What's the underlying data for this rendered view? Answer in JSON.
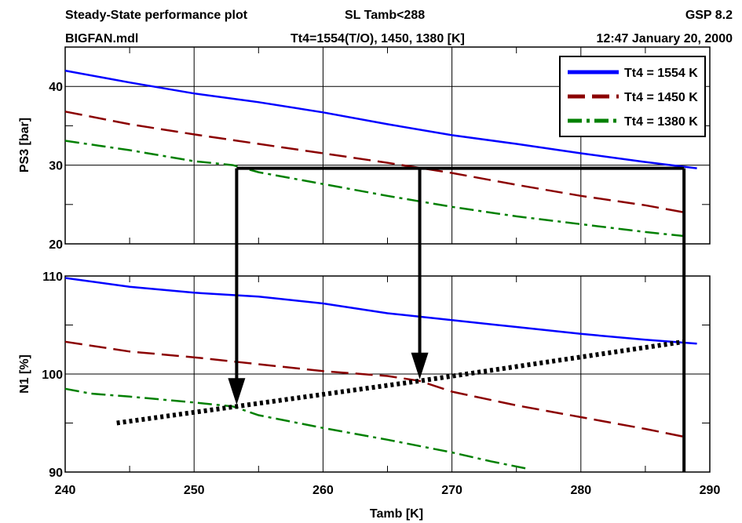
{
  "header": {
    "title": "Steady-State performance plot",
    "model": "BIGFAN.mdl",
    "condition": "SL Tamb<288",
    "tt4_list": "Tt4=1554(T/O), 1450, 1380 [K]",
    "version": "GSP 8.2",
    "datetime": "12:47  January 20, 2000"
  },
  "chart_data": [
    {
      "type": "line",
      "ylabel": "PS3 [bar]",
      "xlim": [
        240,
        290
      ],
      "ylim": [
        20,
        45
      ],
      "yticks": [
        20,
        30,
        40
      ],
      "yticks_minor": [
        25,
        35
      ],
      "grid": true,
      "legend_position": "top-right",
      "series": [
        {
          "name": "Tt4 = 1554 K",
          "color": "#0000ff",
          "style": "solid",
          "x": [
            240,
            245,
            250,
            255,
            260,
            265,
            270,
            275,
            280,
            285,
            289
          ],
          "y": [
            42.0,
            40.5,
            39.1,
            38.0,
            36.7,
            35.2,
            33.8,
            32.7,
            31.5,
            30.4,
            29.6
          ]
        },
        {
          "name": "Tt4 = 1450 K",
          "color": "#8b0000",
          "style": "dashed",
          "x": [
            240,
            245,
            250,
            255,
            260,
            265,
            270,
            275,
            280,
            285,
            288
          ],
          "y": [
            36.8,
            35.2,
            33.9,
            32.7,
            31.5,
            30.3,
            29.0,
            27.5,
            26.1,
            24.9,
            24.0
          ]
        },
        {
          "name": "Tt4 = 1380 K",
          "color": "#008000",
          "style": "dashdot",
          "x": [
            240,
            245,
            250,
            253,
            255,
            260,
            265,
            270,
            275,
            280,
            285,
            288
          ],
          "y": [
            33.1,
            31.9,
            30.5,
            30.0,
            29.1,
            27.6,
            26.1,
            24.7,
            23.5,
            22.5,
            21.5,
            21.0
          ]
        }
      ]
    },
    {
      "type": "line",
      "ylabel": "N1 [%]",
      "xlabel": "Tamb [K]",
      "xlim": [
        240,
        290
      ],
      "xticks": [
        240,
        250,
        260,
        270,
        280,
        290
      ],
      "ylim": [
        90,
        110
      ],
      "yticks": [
        90,
        100,
        110
      ],
      "yticks_minor": [
        95,
        105
      ],
      "grid": true,
      "series": [
        {
          "name": "Tt4 = 1554 K",
          "color": "#0000ff",
          "style": "solid",
          "x": [
            240,
            245,
            250,
            255,
            260,
            265,
            270,
            275,
            280,
            285,
            289
          ],
          "y": [
            109.8,
            108.9,
            108.3,
            107.9,
            107.2,
            106.2,
            105.5,
            104.8,
            104.1,
            103.5,
            103.1
          ]
        },
        {
          "name": "Tt4 = 1450 K",
          "color": "#8b0000",
          "style": "dashed",
          "x": [
            240,
            245,
            250,
            255,
            260,
            265,
            267.5,
            270,
            275,
            280,
            285,
            288
          ],
          "y": [
            103.3,
            102.3,
            101.7,
            101.0,
            100.3,
            99.8,
            99.3,
            98.2,
            96.8,
            95.6,
            94.4,
            93.6
          ]
        },
        {
          "name": "Tt4 = 1380 K",
          "color": "#008000",
          "style": "dashdot",
          "x": [
            240,
            242,
            245,
            250,
            253,
            255,
            260,
            265,
            270,
            273,
            276
          ],
          "y": [
            98.5,
            98.0,
            97.7,
            97.1,
            96.7,
            95.8,
            94.5,
            93.3,
            92.0,
            91.1,
            90.3
          ]
        }
      ]
    }
  ],
  "annotations": {
    "operating_line": {
      "color": "#000000",
      "style": "dotted",
      "x": [
        244,
        253.3,
        267.5,
        288
      ],
      "y": [
        95.0,
        96.7,
        99.3,
        103.3
      ]
    },
    "guide_lines": {
      "color": "#000000",
      "ps3_level": 29.6,
      "tamb_targets": [
        253.3,
        267.5,
        288
      ]
    }
  }
}
